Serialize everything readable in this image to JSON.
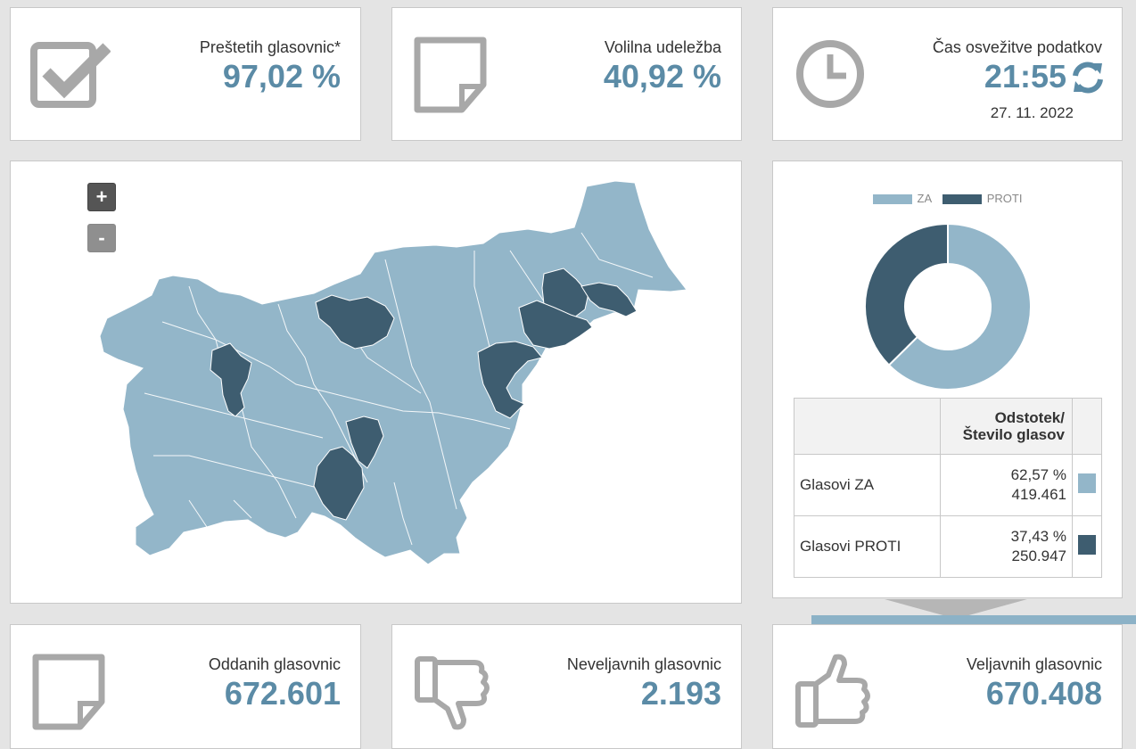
{
  "stats_top": {
    "counted": {
      "label": "Preštetih glasovnic*",
      "value": "97,02 %"
    },
    "turnout": {
      "label": "Volilna udeležba",
      "value": "40,92 %"
    },
    "refresh": {
      "label": "Čas osvežitve podatkov",
      "value": "21:55",
      "date": "27. 11. 2022"
    }
  },
  "map": {
    "zoom_in": "+",
    "zoom_out": "-",
    "colors": {
      "za": "#93b6c9",
      "proti": "#3e5d70"
    }
  },
  "chart_data": {
    "type": "pie",
    "donut": true,
    "categories": [
      "ZA",
      "PROTI"
    ],
    "values": [
      62.57,
      37.43
    ],
    "colors": [
      "#93b6c9",
      "#3e5d70"
    ],
    "legend": "top"
  },
  "legend": {
    "za": "ZA",
    "proti": "PROTI"
  },
  "results_table": {
    "header": [
      "Odstotek/",
      "Število glasov"
    ],
    "rows": [
      {
        "label": "Glasovi ZA",
        "percent": "62,57 %",
        "votes": "419.461",
        "color": "#93b6c9"
      },
      {
        "label": "Glasovi PROTI",
        "percent": "37,43 %",
        "votes": "250.947",
        "color": "#3e5d70"
      }
    ]
  },
  "stats_bottom": {
    "cast": {
      "label": "Oddanih glasovnic",
      "value": "672.601"
    },
    "invalid": {
      "label": "Neveljavnih glasovnic",
      "value": "2.193"
    },
    "valid": {
      "label": "Veljavnih glasovnic",
      "value": "670.408"
    }
  }
}
